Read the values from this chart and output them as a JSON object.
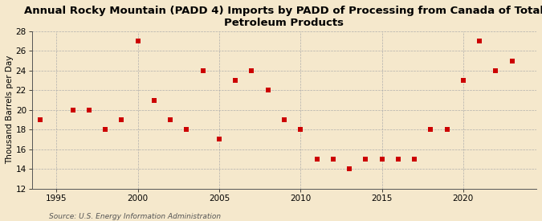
{
  "title": "Annual Rocky Mountain (PADD 4) Imports by PADD of Processing from Canada of Total\nPetroleum Products",
  "ylabel": "Thousand Barrels per Day",
  "source": "Source: U.S. Energy Information Administration",
  "years": [
    1994,
    1996,
    1997,
    1998,
    1999,
    2000,
    2001,
    2002,
    2003,
    2004,
    2005,
    2006,
    2007,
    2008,
    2009,
    2010,
    2011,
    2012,
    2013,
    2014,
    2015,
    2016,
    2017,
    2018,
    2019,
    2020,
    2021,
    2022,
    2023
  ],
  "values": [
    19,
    20,
    20,
    18,
    19,
    27,
    21,
    19,
    18,
    24,
    17,
    23,
    24,
    22,
    19,
    18,
    15,
    15,
    14,
    15,
    15,
    15,
    15,
    18,
    18,
    23,
    27,
    24,
    25
  ],
  "ylim": [
    12,
    28
  ],
  "yticks": [
    12,
    14,
    16,
    18,
    20,
    22,
    24,
    26,
    28
  ],
  "xlim": [
    1993.5,
    2024.5
  ],
  "xticks": [
    1995,
    2000,
    2005,
    2010,
    2015,
    2020
  ],
  "marker_color": "#cc0000",
  "marker_size": 16,
  "background_color": "#f5e8cc",
  "grid_color": "#aaaaaa",
  "title_fontsize": 9.5,
  "label_fontsize": 7.5,
  "tick_fontsize": 7.5,
  "source_fontsize": 6.5
}
